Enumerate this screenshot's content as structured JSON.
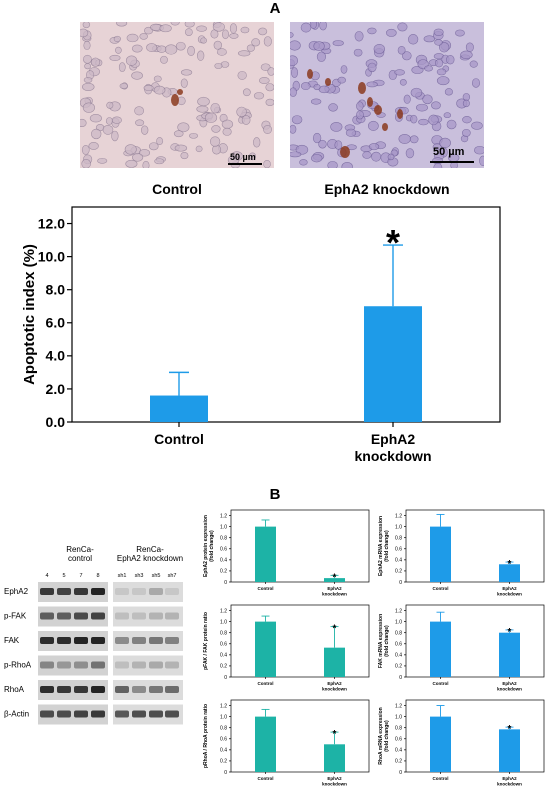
{
  "panel_a": {
    "letter": "A",
    "images": [
      {
        "label": "Control",
        "scale_bar": "50 µm"
      },
      {
        "label": "EphA2 knockdown",
        "scale_bar": "50 µm"
      }
    ]
  },
  "panel_b": {
    "letter": "B"
  },
  "blot": {
    "group_control": "RenCa-\ncontrol",
    "group_knockdown": "RenCa-\nEphA2 knockdown",
    "lanes_control": [
      "4",
      "5",
      "7",
      "8"
    ],
    "lanes_knockdown": [
      "sh1",
      "sh3",
      "sh5",
      "sh7"
    ],
    "rows": [
      "EphA2",
      "p-FAK",
      "FAK",
      "p-RhoA",
      "RhoA",
      "β-Actin"
    ]
  },
  "colors": {
    "bar_blue": "#1e9be8",
    "bar_teal": "#1db3a6"
  },
  "chart_data": [
    {
      "id": "main",
      "type": "bar",
      "categories": [
        "Control",
        "EphA2\nknockdown"
      ],
      "values": [
        1.6,
        7.0
      ],
      "errors": [
        1.4,
        3.7
      ],
      "ylabel": "Apoptotic index (%)",
      "ylim": [
        0,
        13
      ],
      "yticks": [
        "0.0",
        "2.0",
        "4.0",
        "6.0",
        "8.0",
        "10.0",
        "12.0"
      ],
      "annotation": "*",
      "color": "#1e9be8"
    },
    {
      "id": "ephA2_protein",
      "type": "bar",
      "categories": [
        "Control",
        "EphA2\nknockdown"
      ],
      "values": [
        1.0,
        0.07
      ],
      "errors": [
        0.12,
        0.05
      ],
      "ylabel": "EphA2 protein expression\n(fold change)",
      "ylim": [
        0,
        1.3
      ],
      "yticks": [
        "0",
        "0.2",
        "0.4",
        "0.6",
        "0.8",
        "1.0",
        "1.2"
      ],
      "annotation": "*",
      "color": "#1db3a6"
    },
    {
      "id": "ephA2_mrna",
      "type": "bar",
      "categories": [
        "Control",
        "EphA2\nknockdown"
      ],
      "values": [
        1.0,
        0.32
      ],
      "errors": [
        0.22,
        0.04
      ],
      "ylabel": "EphA2 mRNA expression\n(fold change)",
      "ylim": [
        0,
        1.3
      ],
      "yticks": [
        "0",
        "0.2",
        "0.4",
        "0.6",
        "0.8",
        "1.0",
        "1.2"
      ],
      "annotation": "*",
      "color": "#1e9be8"
    },
    {
      "id": "pfak_ratio",
      "type": "bar",
      "categories": [
        "Control",
        "EphA2\nknockdown"
      ],
      "values": [
        1.0,
        0.53
      ],
      "errors": [
        0.1,
        0.38
      ],
      "ylabel": "pFAK / FAK protein ratio",
      "ylim": [
        0,
        1.3
      ],
      "yticks": [
        "0",
        "0.2",
        "0.4",
        "0.6",
        "0.8",
        "1.0",
        "1.2"
      ],
      "annotation": "*",
      "color": "#1db3a6"
    },
    {
      "id": "fak_mrna",
      "type": "bar",
      "categories": [
        "Control",
        "EphA2\nknockdown"
      ],
      "values": [
        1.0,
        0.8
      ],
      "errors": [
        0.17,
        0.05
      ],
      "ylabel": "FAK mRNA expression\n(fold change)",
      "ylim": [
        0,
        1.3
      ],
      "yticks": [
        "0",
        "0.2",
        "0.4",
        "0.6",
        "0.8",
        "1.0",
        "1.2"
      ],
      "annotation": "*",
      "color": "#1e9be8"
    },
    {
      "id": "prhoa_ratio",
      "type": "bar",
      "categories": [
        "Control",
        "EphA2\nknockdown"
      ],
      "values": [
        1.0,
        0.5
      ],
      "errors": [
        0.13,
        0.22
      ],
      "ylabel": "pRhoA / RhoA protein ratio",
      "ylim": [
        0,
        1.3
      ],
      "yticks": [
        "0",
        "0.2",
        "0.4",
        "0.6",
        "0.8",
        "1.0",
        "1.2"
      ],
      "annotation": "*",
      "color": "#1db3a6"
    },
    {
      "id": "rhoa_mrna",
      "type": "bar",
      "categories": [
        "Control",
        "EphA2\nknockdown"
      ],
      "values": [
        1.0,
        0.77
      ],
      "errors": [
        0.2,
        0.04
      ],
      "ylabel": "RhoA mRNA expression\n(fold change)",
      "ylim": [
        0,
        1.3
      ],
      "yticks": [
        "0",
        "0.2",
        "0.4",
        "0.6",
        "0.8",
        "1.0",
        "1.2"
      ],
      "annotation": "*",
      "color": "#1e9be8"
    }
  ]
}
